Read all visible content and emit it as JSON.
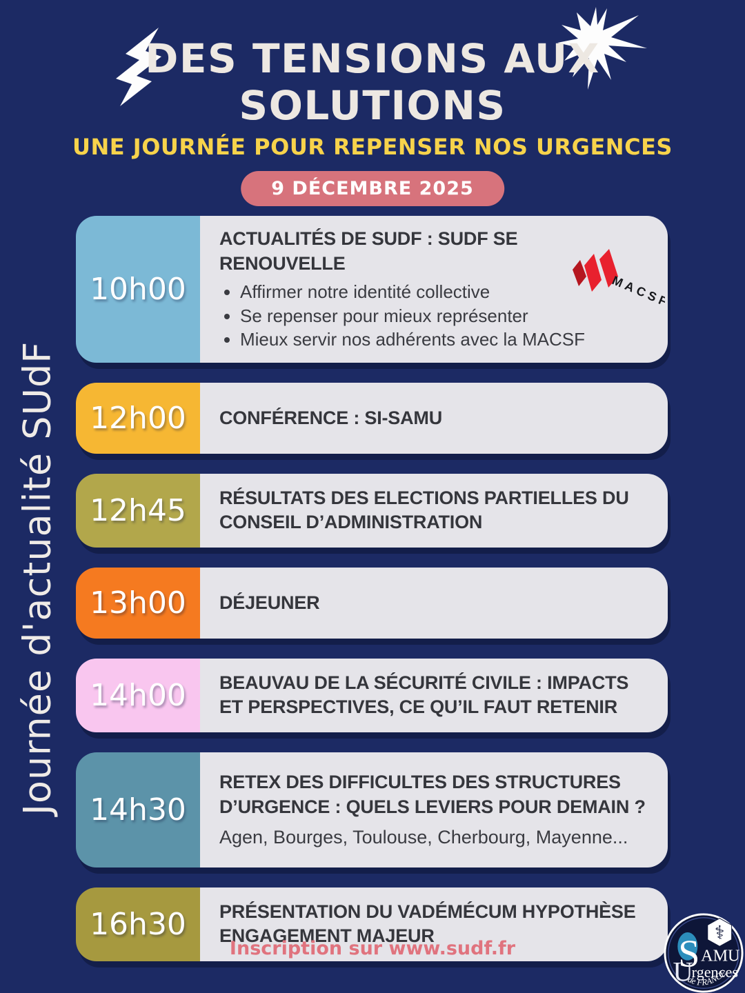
{
  "page": {
    "background": "#1C2A64",
    "panel_gray": "#E5E4E9"
  },
  "header": {
    "title_line1": "DES TENSIONS AUX",
    "title_line2": "SOLUTIONS",
    "subtitle": "UNE JOURNÉE POUR REPENSER NOS URGENCES",
    "date_badge": "9 DÉCEMBRE 2025",
    "title_color": "#EDE8E2",
    "subtitle_color": "#F7D34B",
    "badge_color": "#D7737C"
  },
  "side_label": "Journée d'actualité SUdF",
  "schedule": [
    {
      "time": "10h00",
      "time_bg": "#7CB9D6",
      "title": "ACTUALITÉS DE SUDF : SUDF SE RENOUVELLE",
      "bullets": [
        "Affirmer notre identité collective",
        "Se repenser pour mieux représenter",
        "Mieux servir nos adhérents avec la MACSF"
      ],
      "logo": "MACSF"
    },
    {
      "time": "12h00",
      "time_bg": "#F6B733",
      "title": "CONFÉRENCE : SI-SAMU"
    },
    {
      "time": "12h45",
      "time_bg": "#B2A74B",
      "title": "RÉSULTATS DES ELECTIONS PARTIELLES DU CONSEIL D’ADMINISTRATION"
    },
    {
      "time": "13h00",
      "time_bg": "#F57A20",
      "title": "DÉJEUNER"
    },
    {
      "time": "14h00",
      "time_bg": "#F9C6EF",
      "title": "BEAUVAU DE LA SÉCURITÉ CIVILE : IMPACTS ET PERSPECTIVES, CE QU’IL FAUT RETENIR"
    },
    {
      "time": "14h30",
      "time_bg": "#5C93A9",
      "title": "RETEX DES DIFFICULTES DES STRUCTURES D’URGENCE : QUELS LEVIERS POUR DEMAIN ?",
      "subtitle": "Agen, Bourges, Toulouse, Cherbourg, Mayenne..."
    },
    {
      "time": "16h30",
      "time_bg": "#A6993F",
      "title": "PRÉSENTATION DU VADÉMÉCUM HYPOTHÈSE ENGAGEMENT MAJEUR"
    }
  ],
  "macsf_logo": {
    "label": "MACSF",
    "red": "#E8212E",
    "dark_red": "#B5161F"
  },
  "footer": {
    "inscription": "Inscription sur www.sudf.fr",
    "color": "#E0737E"
  },
  "samu_logo": {
    "big_s": "S",
    "big_u": "U",
    "line1_rest": "AMU",
    "line2_rest": "rgences",
    "line3": "de FRANCE",
    "medical_symbol": "⚕"
  }
}
